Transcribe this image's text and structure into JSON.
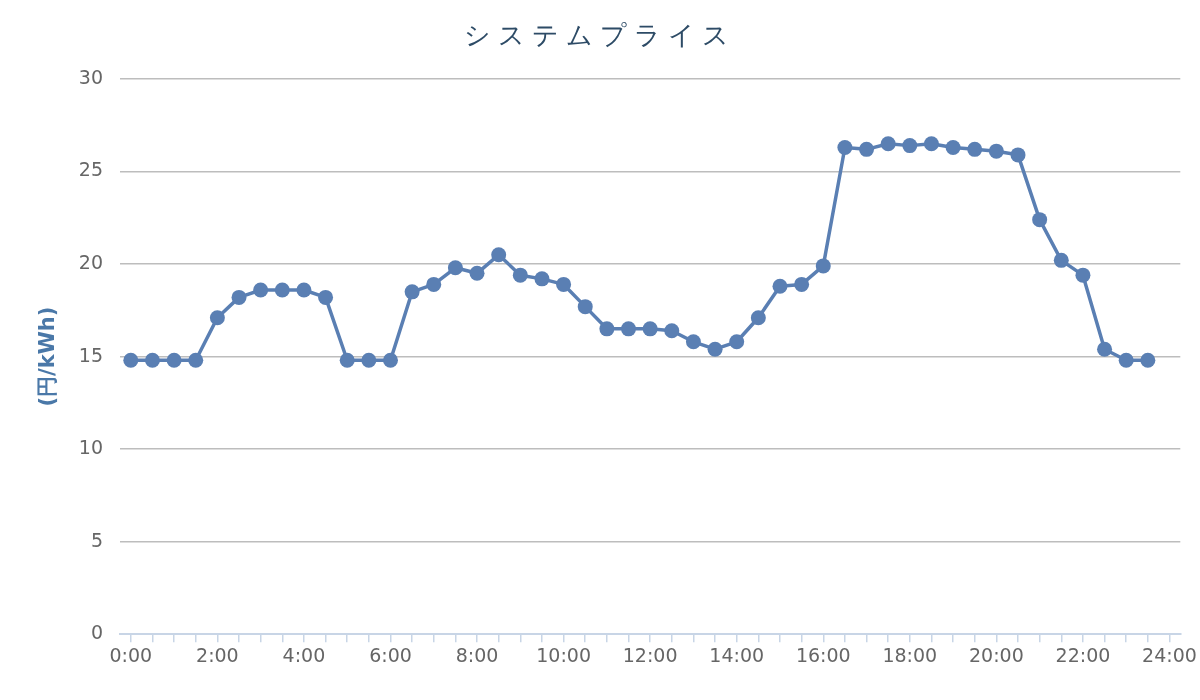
{
  "chart_data": {
    "type": "line",
    "title": "システムプライス",
    "ylabel": "(円/kWh)",
    "x": [
      0,
      0.5,
      1,
      1.5,
      2,
      2.5,
      3,
      3.5,
      4,
      4.5,
      5,
      5.5,
      6,
      6.5,
      7,
      7.5,
      8,
      8.5,
      9,
      9.5,
      10,
      10.5,
      11,
      11.5,
      12,
      12.5,
      13,
      13.5,
      14,
      14.5,
      15,
      15.5,
      16,
      16.5,
      17,
      17.5,
      18,
      18.5,
      19,
      19.5,
      20,
      20.5,
      21,
      21.5,
      22,
      22.5,
      23,
      23.5
    ],
    "values": [
      14.8,
      14.8,
      14.8,
      14.8,
      17.1,
      18.2,
      18.6,
      18.6,
      18.6,
      18.2,
      14.8,
      14.8,
      14.8,
      18.5,
      18.9,
      19.8,
      19.5,
      20.5,
      19.4,
      19.2,
      18.9,
      17.7,
      16.5,
      16.5,
      16.5,
      16.4,
      15.8,
      15.4,
      15.8,
      17.1,
      18.8,
      18.9,
      19.9,
      26.3,
      26.2,
      26.5,
      26.4,
      26.5,
      26.3,
      26.2,
      26.1,
      25.9,
      22.4,
      20.2,
      19.4,
      15.4,
      14.8,
      14.8
    ],
    "color": "#5a7fb3",
    "xlim": [
      -0.25,
      24.25
    ],
    "xticks": [
      {
        "value": 0,
        "label": "0:00"
      },
      {
        "value": 0.5,
        "label": null
      },
      {
        "value": 1,
        "label": null
      },
      {
        "value": 1.5,
        "label": null
      },
      {
        "value": 2,
        "label": "2:00"
      },
      {
        "value": 2.5,
        "label": null
      },
      {
        "value": 3,
        "label": null
      },
      {
        "value": 3.5,
        "label": null
      },
      {
        "value": 4,
        "label": "4:00"
      },
      {
        "value": 4.5,
        "label": null
      },
      {
        "value": 5,
        "label": null
      },
      {
        "value": 5.5,
        "label": null
      },
      {
        "value": 6,
        "label": "6:00"
      },
      {
        "value": 6.5,
        "label": null
      },
      {
        "value": 7,
        "label": null
      },
      {
        "value": 7.5,
        "label": null
      },
      {
        "value": 8,
        "label": "8:00"
      },
      {
        "value": 8.5,
        "label": null
      },
      {
        "value": 9,
        "label": null
      },
      {
        "value": 9.5,
        "label": null
      },
      {
        "value": 10,
        "label": "10:00"
      },
      {
        "value": 10.5,
        "label": null
      },
      {
        "value": 11,
        "label": null
      },
      {
        "value": 11.5,
        "label": null
      },
      {
        "value": 12,
        "label": "12:00"
      },
      {
        "value": 12.5,
        "label": null
      },
      {
        "value": 13,
        "label": null
      },
      {
        "value": 13.5,
        "label": null
      },
      {
        "value": 14,
        "label": "14:00"
      },
      {
        "value": 14.5,
        "label": null
      },
      {
        "value": 15,
        "label": null
      },
      {
        "value": 15.5,
        "label": null
      },
      {
        "value": 16,
        "label": "16:00"
      },
      {
        "value": 16.5,
        "label": null
      },
      {
        "value": 17,
        "label": null
      },
      {
        "value": 17.5,
        "label": null
      },
      {
        "value": 18,
        "label": "18:00"
      },
      {
        "value": 18.5,
        "label": null
      },
      {
        "value": 19,
        "label": null
      },
      {
        "value": 19.5,
        "label": null
      },
      {
        "value": 20,
        "label": "20:00"
      },
      {
        "value": 20.5,
        "label": null
      },
      {
        "value": 21,
        "label": null
      },
      {
        "value": 21.5,
        "label": null
      },
      {
        "value": 22,
        "label": "22:00"
      },
      {
        "value": 22.5,
        "label": null
      },
      {
        "value": 23,
        "label": null
      },
      {
        "value": 23.5,
        "label": null
      },
      {
        "value": 24,
        "label": "24:00"
      }
    ],
    "ylim": [
      0,
      30
    ],
    "yticks": [
      0,
      5,
      10,
      15,
      20,
      25,
      30
    ],
    "grid": "y",
    "marker": "circle",
    "line_style": "solid"
  }
}
